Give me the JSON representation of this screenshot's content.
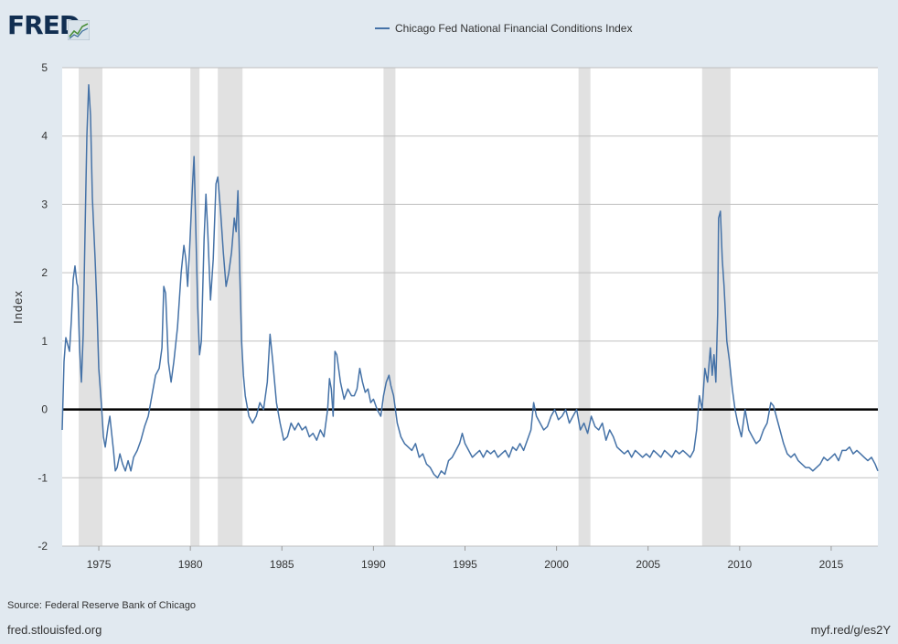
{
  "branding": {
    "logo_text": "FRED"
  },
  "footer": {
    "source": "Source: Federal Reserve Bank of Chicago",
    "site": "fred.stlouisfed.org",
    "short_url": "myf.red/g/es2Y"
  },
  "colors": {
    "series": "#4572a7",
    "recession": "#e1e1e1",
    "zero_line": "#000000",
    "grid": "#c0c0c0",
    "page": "#e1e9f0"
  },
  "chart_data": {
    "type": "line",
    "title": "",
    "xlabel": "",
    "ylabel": "Index",
    "xlim": [
      1973.0,
      2017.55
    ],
    "ylim": [
      -2,
      5
    ],
    "x_ticks": [
      1975,
      1980,
      1985,
      1990,
      1995,
      2000,
      2005,
      2010,
      2015
    ],
    "y_ticks": [
      -2,
      -1,
      0,
      1,
      2,
      3,
      4,
      5
    ],
    "grid": true,
    "legend": "top-center",
    "recessions": [
      [
        1973.9,
        1975.2
      ],
      [
        1980.0,
        1980.5
      ],
      [
        1981.5,
        1982.85
      ],
      [
        1990.55,
        1991.2
      ],
      [
        2001.2,
        2001.85
      ],
      [
        2007.95,
        2009.5
      ]
    ],
    "series": [
      {
        "name": "Chicago Fed National Financial Conditions Index",
        "points": [
          [
            1973.0,
            -0.3
          ],
          [
            1973.1,
            0.7
          ],
          [
            1973.2,
            1.05
          ],
          [
            1973.3,
            0.95
          ],
          [
            1973.4,
            0.85
          ],
          [
            1973.5,
            1.3
          ],
          [
            1973.6,
            1.9
          ],
          [
            1973.7,
            2.1
          ],
          [
            1973.8,
            1.85
          ],
          [
            1973.85,
            1.8
          ],
          [
            1973.95,
            0.9
          ],
          [
            1974.05,
            0.4
          ],
          [
            1974.15,
            1.1
          ],
          [
            1974.25,
            2.6
          ],
          [
            1974.35,
            4.0
          ],
          [
            1974.45,
            4.75
          ],
          [
            1974.55,
            4.3
          ],
          [
            1974.65,
            3.1
          ],
          [
            1974.8,
            2.2
          ],
          [
            1974.9,
            1.5
          ],
          [
            1975.0,
            0.6
          ],
          [
            1975.15,
            0.05
          ],
          [
            1975.25,
            -0.4
          ],
          [
            1975.35,
            -0.55
          ],
          [
            1975.5,
            -0.25
          ],
          [
            1975.6,
            -0.1
          ],
          [
            1975.7,
            -0.35
          ],
          [
            1975.8,
            -0.6
          ],
          [
            1975.9,
            -0.9
          ],
          [
            1976.0,
            -0.85
          ],
          [
            1976.15,
            -0.65
          ],
          [
            1976.3,
            -0.8
          ],
          [
            1976.45,
            -0.9
          ],
          [
            1976.6,
            -0.75
          ],
          [
            1976.75,
            -0.9
          ],
          [
            1976.9,
            -0.7
          ],
          [
            1977.1,
            -0.6
          ],
          [
            1977.3,
            -0.45
          ],
          [
            1977.5,
            -0.25
          ],
          [
            1977.7,
            -0.1
          ],
          [
            1977.9,
            0.2
          ],
          [
            1978.1,
            0.5
          ],
          [
            1978.3,
            0.6
          ],
          [
            1978.45,
            0.9
          ],
          [
            1978.55,
            1.8
          ],
          [
            1978.65,
            1.7
          ],
          [
            1978.8,
            0.7
          ],
          [
            1978.95,
            0.4
          ],
          [
            1979.1,
            0.7
          ],
          [
            1979.3,
            1.2
          ],
          [
            1979.5,
            2.0
          ],
          [
            1979.65,
            2.4
          ],
          [
            1979.75,
            2.2
          ],
          [
            1979.85,
            1.8
          ],
          [
            1979.95,
            2.3
          ],
          [
            1980.1,
            3.2
          ],
          [
            1980.2,
            3.7
          ],
          [
            1980.3,
            2.6
          ],
          [
            1980.4,
            1.5
          ],
          [
            1980.5,
            0.8
          ],
          [
            1980.6,
            1.0
          ],
          [
            1980.75,
            2.5
          ],
          [
            1980.85,
            3.15
          ],
          [
            1980.95,
            2.6
          ],
          [
            1981.1,
            1.6
          ],
          [
            1981.25,
            2.2
          ],
          [
            1981.4,
            3.3
          ],
          [
            1981.5,
            3.4
          ],
          [
            1981.65,
            2.9
          ],
          [
            1981.8,
            2.3
          ],
          [
            1981.95,
            1.8
          ],
          [
            1982.1,
            2.0
          ],
          [
            1982.25,
            2.3
          ],
          [
            1982.4,
            2.8
          ],
          [
            1982.5,
            2.6
          ],
          [
            1982.6,
            3.2
          ],
          [
            1982.7,
            2.0
          ],
          [
            1982.8,
            1.0
          ],
          [
            1982.9,
            0.5
          ],
          [
            1983.0,
            0.2
          ],
          [
            1983.2,
            -0.1
          ],
          [
            1983.4,
            -0.2
          ],
          [
            1983.6,
            -0.1
          ],
          [
            1983.8,
            0.1
          ],
          [
            1984.0,
            0.0
          ],
          [
            1984.2,
            0.4
          ],
          [
            1984.35,
            1.1
          ],
          [
            1984.5,
            0.7
          ],
          [
            1984.7,
            0.1
          ],
          [
            1984.9,
            -0.2
          ],
          [
            1985.1,
            -0.45
          ],
          [
            1985.3,
            -0.4
          ],
          [
            1985.5,
            -0.2
          ],
          [
            1985.7,
            -0.3
          ],
          [
            1985.9,
            -0.2
          ],
          [
            1986.1,
            -0.3
          ],
          [
            1986.3,
            -0.25
          ],
          [
            1986.5,
            -0.4
          ],
          [
            1986.7,
            -0.35
          ],
          [
            1986.9,
            -0.45
          ],
          [
            1987.1,
            -0.3
          ],
          [
            1987.3,
            -0.4
          ],
          [
            1987.5,
            0.0
          ],
          [
            1987.6,
            0.45
          ],
          [
            1987.7,
            0.3
          ],
          [
            1987.8,
            -0.1
          ],
          [
            1987.9,
            0.85
          ],
          [
            1988.0,
            0.8
          ],
          [
            1988.2,
            0.4
          ],
          [
            1988.4,
            0.15
          ],
          [
            1988.6,
            0.3
          ],
          [
            1988.8,
            0.2
          ],
          [
            1988.95,
            0.2
          ],
          [
            1989.1,
            0.3
          ],
          [
            1989.25,
            0.6
          ],
          [
            1989.4,
            0.4
          ],
          [
            1989.55,
            0.25
          ],
          [
            1989.7,
            0.3
          ],
          [
            1989.85,
            0.1
          ],
          [
            1990.0,
            0.15
          ],
          [
            1990.2,
            0.0
          ],
          [
            1990.4,
            -0.1
          ],
          [
            1990.55,
            0.2
          ],
          [
            1990.7,
            0.4
          ],
          [
            1990.85,
            0.5
          ],
          [
            1990.95,
            0.35
          ],
          [
            1991.1,
            0.2
          ],
          [
            1991.3,
            -0.2
          ],
          [
            1991.5,
            -0.4
          ],
          [
            1991.7,
            -0.5
          ],
          [
            1991.9,
            -0.55
          ],
          [
            1992.1,
            -0.6
          ],
          [
            1992.3,
            -0.5
          ],
          [
            1992.5,
            -0.7
          ],
          [
            1992.7,
            -0.65
          ],
          [
            1992.9,
            -0.8
          ],
          [
            1993.1,
            -0.85
          ],
          [
            1993.3,
            -0.95
          ],
          [
            1993.5,
            -1.0
          ],
          [
            1993.7,
            -0.9
          ],
          [
            1993.9,
            -0.95
          ],
          [
            1994.1,
            -0.75
          ],
          [
            1994.3,
            -0.7
          ],
          [
            1994.5,
            -0.6
          ],
          [
            1994.7,
            -0.5
          ],
          [
            1994.85,
            -0.35
          ],
          [
            1995.0,
            -0.5
          ],
          [
            1995.2,
            -0.6
          ],
          [
            1995.4,
            -0.7
          ],
          [
            1995.6,
            -0.65
          ],
          [
            1995.8,
            -0.6
          ],
          [
            1996.0,
            -0.7
          ],
          [
            1996.2,
            -0.6
          ],
          [
            1996.4,
            -0.65
          ],
          [
            1996.6,
            -0.6
          ],
          [
            1996.8,
            -0.7
          ],
          [
            1997.0,
            -0.65
          ],
          [
            1997.2,
            -0.6
          ],
          [
            1997.4,
            -0.7
          ],
          [
            1997.6,
            -0.55
          ],
          [
            1997.8,
            -0.6
          ],
          [
            1998.0,
            -0.5
          ],
          [
            1998.2,
            -0.6
          ],
          [
            1998.4,
            -0.45
          ],
          [
            1998.6,
            -0.3
          ],
          [
            1998.75,
            0.1
          ],
          [
            1998.9,
            -0.1
          ],
          [
            1999.1,
            -0.2
          ],
          [
            1999.3,
            -0.3
          ],
          [
            1999.5,
            -0.25
          ],
          [
            1999.7,
            -0.1
          ],
          [
            1999.9,
            0.0
          ],
          [
            2000.1,
            -0.15
          ],
          [
            2000.3,
            -0.1
          ],
          [
            2000.5,
            0.0
          ],
          [
            2000.7,
            -0.2
          ],
          [
            2000.9,
            -0.1
          ],
          [
            2001.1,
            0.0
          ],
          [
            2001.3,
            -0.3
          ],
          [
            2001.5,
            -0.2
          ],
          [
            2001.7,
            -0.35
          ],
          [
            2001.9,
            -0.1
          ],
          [
            2002.1,
            -0.25
          ],
          [
            2002.3,
            -0.3
          ],
          [
            2002.5,
            -0.2
          ],
          [
            2002.7,
            -0.45
          ],
          [
            2002.9,
            -0.3
          ],
          [
            2003.1,
            -0.4
          ],
          [
            2003.3,
            -0.55
          ],
          [
            2003.5,
            -0.6
          ],
          [
            2003.7,
            -0.65
          ],
          [
            2003.9,
            -0.6
          ],
          [
            2004.1,
            -0.7
          ],
          [
            2004.3,
            -0.6
          ],
          [
            2004.5,
            -0.65
          ],
          [
            2004.7,
            -0.7
          ],
          [
            2004.9,
            -0.65
          ],
          [
            2005.1,
            -0.7
          ],
          [
            2005.3,
            -0.6
          ],
          [
            2005.5,
            -0.65
          ],
          [
            2005.7,
            -0.7
          ],
          [
            2005.9,
            -0.6
          ],
          [
            2006.1,
            -0.65
          ],
          [
            2006.3,
            -0.7
          ],
          [
            2006.5,
            -0.6
          ],
          [
            2006.7,
            -0.65
          ],
          [
            2006.9,
            -0.6
          ],
          [
            2007.1,
            -0.65
          ],
          [
            2007.3,
            -0.7
          ],
          [
            2007.5,
            -0.6
          ],
          [
            2007.65,
            -0.3
          ],
          [
            2007.8,
            0.2
          ],
          [
            2007.95,
            0.0
          ],
          [
            2008.1,
            0.6
          ],
          [
            2008.25,
            0.4
          ],
          [
            2008.4,
            0.9
          ],
          [
            2008.5,
            0.5
          ],
          [
            2008.6,
            0.8
          ],
          [
            2008.7,
            0.4
          ],
          [
            2008.8,
            1.4
          ],
          [
            2008.85,
            2.8
          ],
          [
            2008.95,
            2.9
          ],
          [
            2009.05,
            2.2
          ],
          [
            2009.15,
            1.8
          ],
          [
            2009.3,
            1.0
          ],
          [
            2009.45,
            0.7
          ],
          [
            2009.6,
            0.3
          ],
          [
            2009.75,
            0.0
          ],
          [
            2009.9,
            -0.2
          ],
          [
            2010.1,
            -0.4
          ],
          [
            2010.3,
            0.0
          ],
          [
            2010.5,
            -0.3
          ],
          [
            2010.7,
            -0.4
          ],
          [
            2010.9,
            -0.5
          ],
          [
            2011.1,
            -0.45
          ],
          [
            2011.3,
            -0.3
          ],
          [
            2011.5,
            -0.2
          ],
          [
            2011.7,
            0.1
          ],
          [
            2011.85,
            0.05
          ],
          [
            2012.0,
            -0.1
          ],
          [
            2012.2,
            -0.3
          ],
          [
            2012.4,
            -0.5
          ],
          [
            2012.6,
            -0.65
          ],
          [
            2012.8,
            -0.7
          ],
          [
            2013.0,
            -0.65
          ],
          [
            2013.2,
            -0.75
          ],
          [
            2013.4,
            -0.8
          ],
          [
            2013.6,
            -0.85
          ],
          [
            2013.8,
            -0.85
          ],
          [
            2014.0,
            -0.9
          ],
          [
            2014.2,
            -0.85
          ],
          [
            2014.4,
            -0.8
          ],
          [
            2014.6,
            -0.7
          ],
          [
            2014.8,
            -0.75
          ],
          [
            2015.0,
            -0.7
          ],
          [
            2015.2,
            -0.65
          ],
          [
            2015.4,
            -0.75
          ],
          [
            2015.6,
            -0.6
          ],
          [
            2015.8,
            -0.6
          ],
          [
            2016.0,
            -0.55
          ],
          [
            2016.2,
            -0.65
          ],
          [
            2016.4,
            -0.6
          ],
          [
            2016.6,
            -0.65
          ],
          [
            2016.8,
            -0.7
          ],
          [
            2017.0,
            -0.75
          ],
          [
            2017.2,
            -0.7
          ],
          [
            2017.4,
            -0.8
          ],
          [
            2017.55,
            -0.9
          ]
        ]
      }
    ]
  }
}
